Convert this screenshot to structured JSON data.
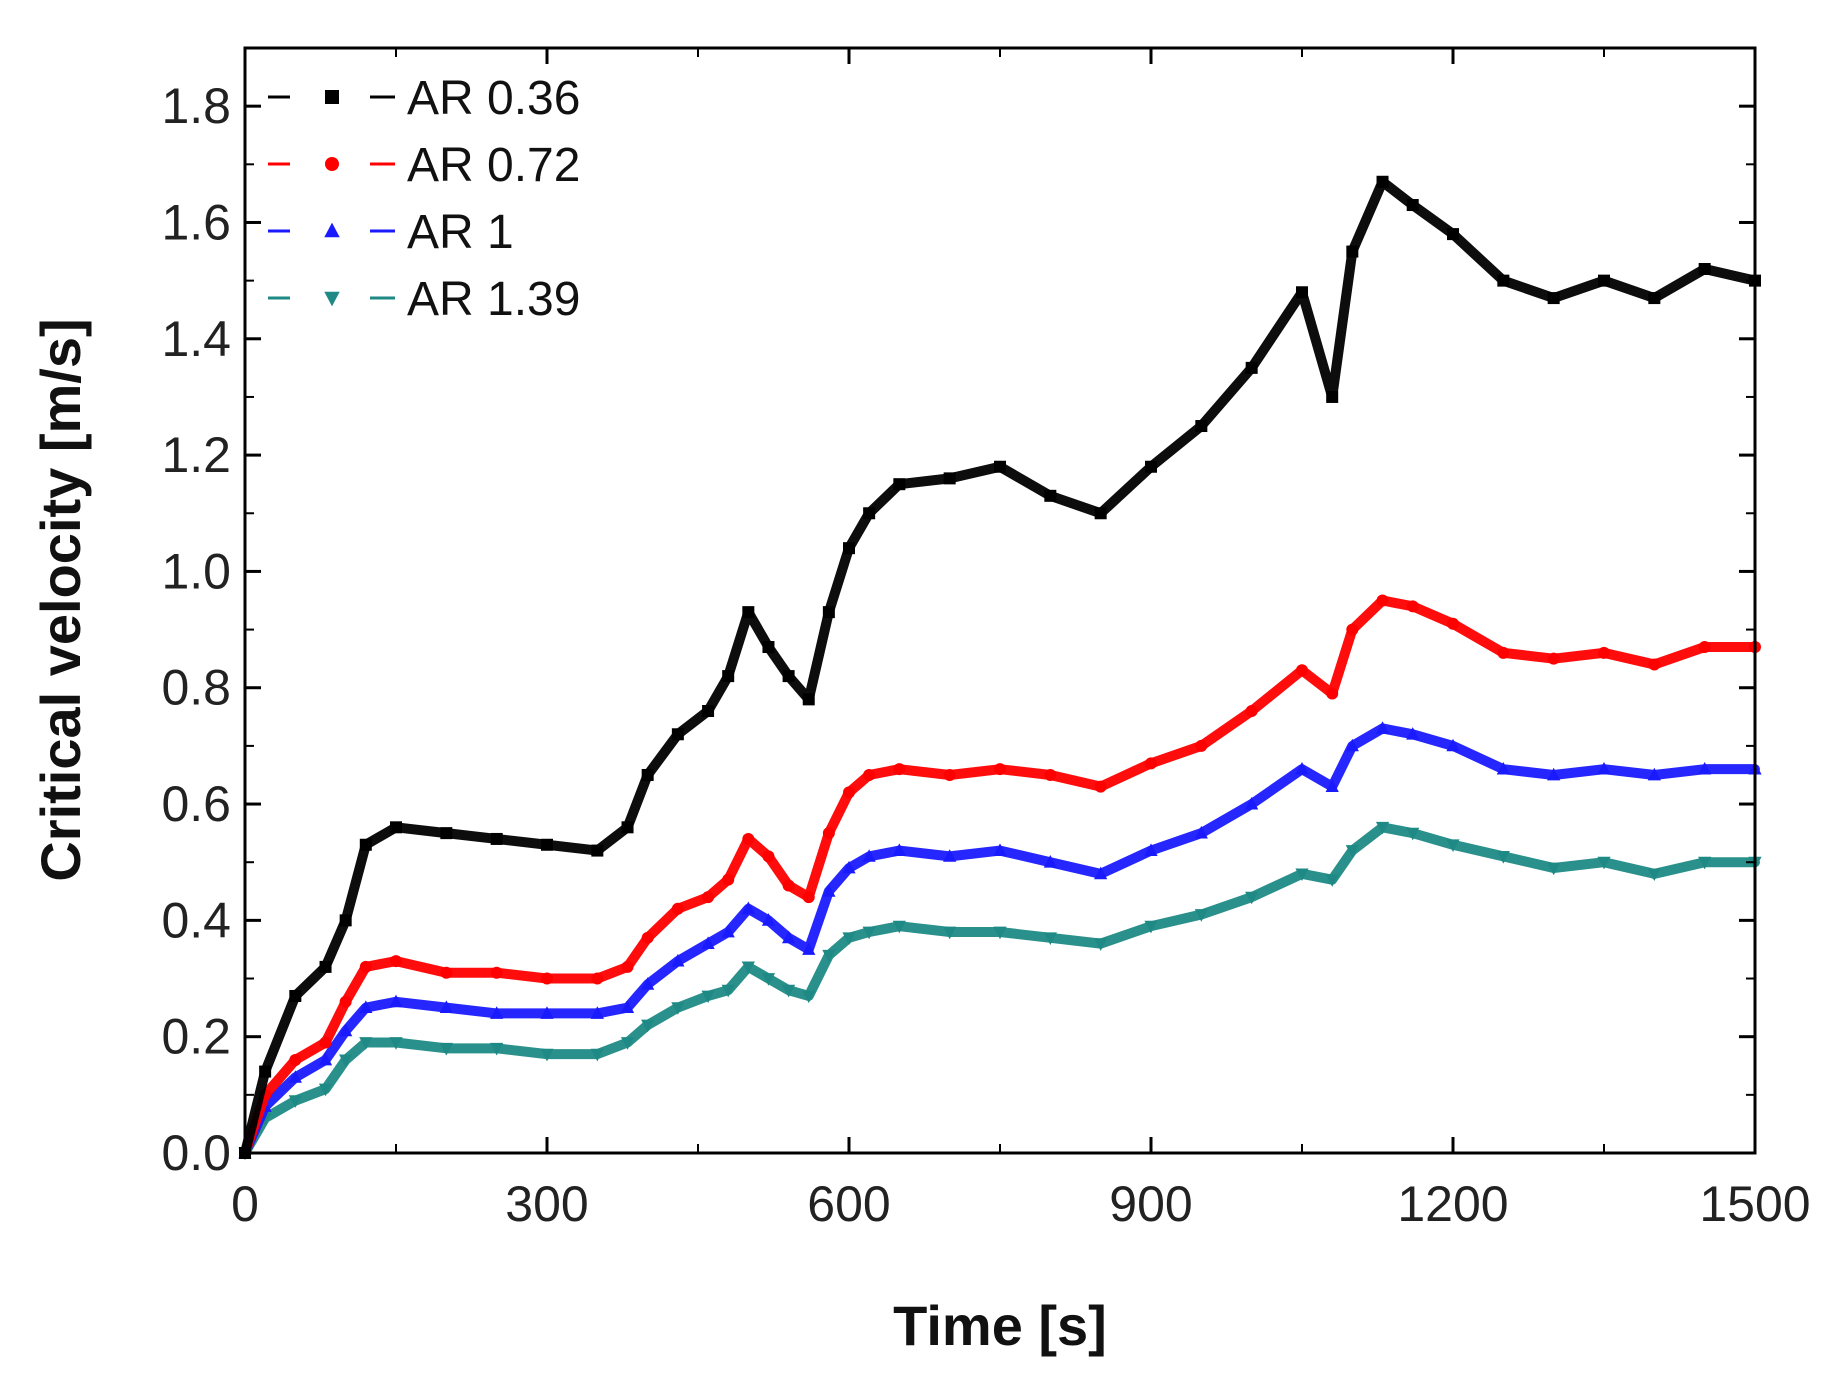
{
  "chart_data": {
    "type": "line",
    "title": "",
    "xlabel": "Time [s]",
    "ylabel": "Critical velocity [m/s]",
    "xlim": [
      0,
      1500
    ],
    "ylim": [
      0.0,
      1.9
    ],
    "xticks": [
      0,
      300,
      600,
      900,
      1200,
      1500
    ],
    "xtick_labels": [
      "0",
      "300",
      "600",
      "900",
      "1200",
      "1500"
    ],
    "yticks": [
      0.0,
      0.2,
      0.4,
      0.6,
      0.8,
      1.0,
      1.2,
      1.4,
      1.6,
      1.8
    ],
    "ytick_labels": [
      "0.0",
      "0.2",
      "0.4",
      "0.6",
      "0.8",
      "1.0",
      "1.2",
      "1.4",
      "1.6",
      "1.8"
    ],
    "grid": false,
    "legend_position": "top-left",
    "x": [
      0,
      20,
      50,
      80,
      100,
      120,
      150,
      200,
      250,
      300,
      350,
      380,
      400,
      430,
      460,
      480,
      500,
      520,
      540,
      560,
      580,
      600,
      620,
      650,
      700,
      750,
      800,
      850,
      900,
      950,
      1000,
      1050,
      1080,
      1100,
      1130,
      1160,
      1200,
      1250,
      1300,
      1350,
      1400,
      1450,
      1500
    ],
    "series": [
      {
        "name": "AR 0.36",
        "color": "#000000",
        "marker": "square",
        "values": [
          0.0,
          0.14,
          0.27,
          0.32,
          0.4,
          0.53,
          0.56,
          0.55,
          0.54,
          0.53,
          0.52,
          0.56,
          0.65,
          0.72,
          0.76,
          0.82,
          0.93,
          0.87,
          0.82,
          0.78,
          0.93,
          1.04,
          1.1,
          1.15,
          1.16,
          1.18,
          1.13,
          1.1,
          1.18,
          1.25,
          1.35,
          1.48,
          1.3,
          1.55,
          1.67,
          1.63,
          1.58,
          1.5,
          1.47,
          1.5,
          1.47,
          1.52,
          1.5
        ]
      },
      {
        "name": "AR 0.72",
        "color": "#ff0000",
        "marker": "circle",
        "values": [
          0.0,
          0.1,
          0.16,
          0.19,
          0.26,
          0.32,
          0.33,
          0.31,
          0.31,
          0.3,
          0.3,
          0.32,
          0.37,
          0.42,
          0.44,
          0.47,
          0.54,
          0.51,
          0.46,
          0.44,
          0.55,
          0.62,
          0.65,
          0.66,
          0.65,
          0.66,
          0.65,
          0.63,
          0.67,
          0.7,
          0.76,
          0.83,
          0.79,
          0.9,
          0.95,
          0.94,
          0.91,
          0.86,
          0.85,
          0.86,
          0.84,
          0.87,
          0.87
        ]
      },
      {
        "name": "AR 1",
        "color": "#1a1aff",
        "marker": "triangle",
        "values": [
          0.0,
          0.08,
          0.13,
          0.16,
          0.21,
          0.25,
          0.26,
          0.25,
          0.24,
          0.24,
          0.24,
          0.25,
          0.29,
          0.33,
          0.36,
          0.38,
          0.42,
          0.4,
          0.37,
          0.35,
          0.45,
          0.49,
          0.51,
          0.52,
          0.51,
          0.52,
          0.5,
          0.48,
          0.52,
          0.55,
          0.6,
          0.66,
          0.63,
          0.7,
          0.73,
          0.72,
          0.7,
          0.66,
          0.65,
          0.66,
          0.65,
          0.66,
          0.66
        ]
      },
      {
        "name": "AR 1.39",
        "color": "#1f8a85",
        "marker": "triangle-down",
        "values": [
          0.0,
          0.06,
          0.09,
          0.11,
          0.16,
          0.19,
          0.19,
          0.18,
          0.18,
          0.17,
          0.17,
          0.19,
          0.22,
          0.25,
          0.27,
          0.28,
          0.32,
          0.3,
          0.28,
          0.27,
          0.34,
          0.37,
          0.38,
          0.39,
          0.38,
          0.38,
          0.37,
          0.36,
          0.39,
          0.41,
          0.44,
          0.48,
          0.47,
          0.52,
          0.56,
          0.55,
          0.53,
          0.51,
          0.49,
          0.5,
          0.48,
          0.5,
          0.5
        ]
      }
    ]
  }
}
